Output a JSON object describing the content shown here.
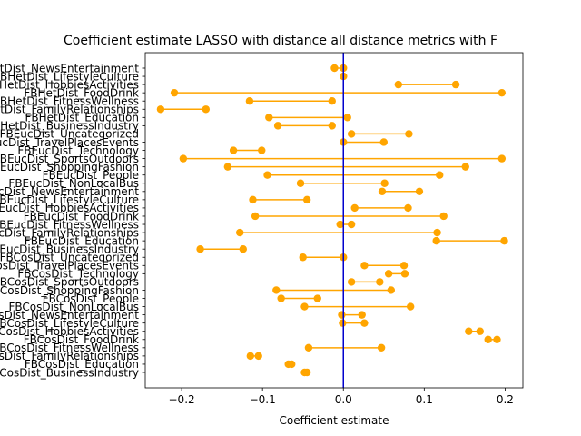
{
  "chart_data": {
    "type": "dumbbell",
    "title": "Coefficient estimate LASSO  with distance all distance metrics with F",
    "xlabel": "Coefficient estimate",
    "ylabel": "",
    "xlim": [
      -0.245,
      0.222
    ],
    "xticks": [
      -0.2,
      -0.1,
      0.0,
      0.1,
      0.2
    ],
    "xtick_labels": [
      "−0.2",
      "−0.1",
      "0.0",
      "0.1",
      "0.2"
    ],
    "reference_line_x": 0.0,
    "colors": {
      "dumbbell": "#FFA500",
      "reference_line": "#0000CD",
      "axis": "#000000"
    },
    "categories": [
      "FBHetDist_NewsEntertainment",
      "FBHetDist_LifestyleCulture",
      "FBHetDist_HobbiesActivities",
      "FBHetDist_FoodDrink",
      "FBHetDist_FitnessWellness",
      "FBHetDist_FamilyRelationships",
      "FBHetDist_Education",
      "FBHetDist_BusinessIndustry",
      "FBEucDist_Uncategorized",
      "FBEucDist_TravelPlacesEvents",
      "FBEucDist_Technology",
      "FBEucDist_SportsOutdoors",
      "FBEucDist_ShoppingFashion",
      "FBEucDist_People",
      "FBEucDist_NonLocalBus",
      "FBEucDist_NewsEntertainment",
      "FBEucDist_LifestyleCulture",
      "FBEucDist_HobbiesActivities",
      "FBEucDist_FoodDrink",
      "FBEucDist_FitnessWellness",
      "FBEucDist_FamilyRelationships",
      "FBEucDist_Education",
      "FBEucDist_BusinessIndustry",
      "FBCosDist_Uncategorized",
      "FBCosDist_TravelPlacesEvents",
      "FBCosDist_Technology",
      "FBCosDist_SportsOutdoors",
      "FBCosDist_ShoppingFashion",
      "FBCosDist_People",
      "FBCosDist_NonLocalBus",
      "FBCosDist_NewsEntertainment",
      "FBCosDist_LifestyleCulture",
      "FBCosDist_HobbiesActivities",
      "FBCosDist_FoodDrink",
      "FBCosDist_FitnessWellness",
      "FBCosDist_FamilyRelationships",
      "FBCosDist_Education",
      "FBCosDist_BusinessIndustry"
    ],
    "low": [
      -0.011,
      0.0,
      0.068,
      -0.209,
      -0.116,
      -0.226,
      -0.092,
      -0.081,
      0.01,
      0.0,
      -0.136,
      -0.198,
      -0.143,
      -0.094,
      -0.053,
      0.048,
      -0.112,
      0.014,
      -0.109,
      -0.004,
      -0.128,
      0.115,
      -0.177,
      -0.05,
      0.026,
      0.056,
      0.01,
      -0.083,
      -0.077,
      -0.048,
      -0.002,
      -0.001,
      0.155,
      0.179,
      -0.043,
      -0.115,
      -0.068,
      -0.048
    ],
    "high": [
      0.0,
      0.0,
      0.139,
      0.196,
      -0.014,
      -0.17,
      0.005,
      -0.014,
      0.081,
      0.05,
      -0.101,
      0.196,
      0.151,
      0.119,
      0.051,
      0.094,
      -0.045,
      0.08,
      0.124,
      0.01,
      0.116,
      0.199,
      -0.124,
      0.0,
      0.075,
      0.076,
      0.045,
      0.059,
      -0.032,
      0.083,
      0.023,
      0.026,
      0.169,
      0.19,
      0.047,
      -0.105,
      -0.064,
      -0.045
    ]
  }
}
